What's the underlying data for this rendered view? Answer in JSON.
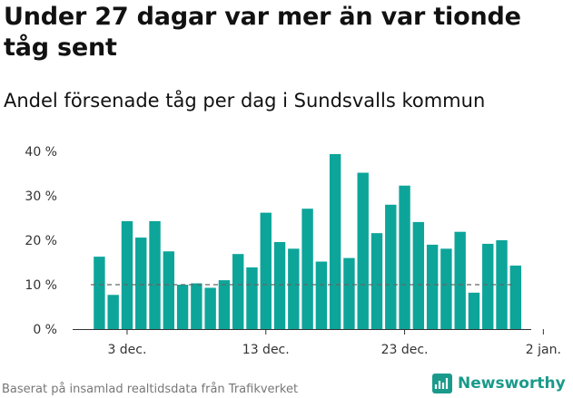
{
  "title": "Under 27 dagar var mer än var tionde tåg sent",
  "subtitle": "Andel försenade tåg per dag i Sundsvalls kommun",
  "source": "Baserat på insamlad realtidsdata från Trafikverket",
  "brand": {
    "name": "Newsworthy",
    "logo_icon": "newsworthy-chart-logo-icon"
  },
  "colors": {
    "bar": "#0da59a",
    "reference_line": "#666666",
    "axis": "#333333",
    "brand": "#1a9a8b"
  },
  "chart_data": {
    "type": "bar",
    "x": [
      "2023-12-01",
      "2023-12-02",
      "2023-12-03",
      "2023-12-04",
      "2023-12-05",
      "2023-12-06",
      "2023-12-07",
      "2023-12-08",
      "2023-12-09",
      "2023-12-10",
      "2023-12-11",
      "2023-12-12",
      "2023-12-13",
      "2023-12-14",
      "2023-12-15",
      "2023-12-16",
      "2023-12-17",
      "2023-12-18",
      "2023-12-19",
      "2023-12-20",
      "2023-12-21",
      "2023-12-22",
      "2023-12-23",
      "2023-12-24",
      "2023-12-25",
      "2023-12-26",
      "2023-12-27",
      "2023-12-28",
      "2023-12-29",
      "2023-12-30",
      "2023-12-31"
    ],
    "values": [
      16.3,
      7.7,
      24.3,
      20.6,
      24.3,
      17.5,
      10.0,
      10.3,
      9.3,
      11.0,
      16.9,
      13.9,
      26.2,
      19.6,
      18.1,
      27.1,
      15.2,
      39.4,
      16.0,
      35.2,
      21.6,
      28.0,
      32.3,
      24.1,
      19.0,
      18.1,
      21.9,
      8.2,
      19.2,
      20.0,
      14.3
    ],
    "reference_line": 10,
    "ylim": [
      0,
      40
    ],
    "yticks": [
      {
        "value": 0,
        "label": "0 %"
      },
      {
        "value": 10,
        "label": "10 %"
      },
      {
        "value": 20,
        "label": "20 %"
      },
      {
        "value": 30,
        "label": "30 %"
      },
      {
        "value": 40,
        "label": "40 %"
      }
    ],
    "xticks": [
      {
        "date": "2023-12-03",
        "label": "3 dec."
      },
      {
        "date": "2023-12-13",
        "label": "13 dec."
      },
      {
        "date": "2023-12-23",
        "label": "23 dec."
      },
      {
        "date": "2024-01-02",
        "label": "2 jan."
      }
    ],
    "xlabel": "",
    "ylabel": "",
    "grid": false,
    "legend": "none"
  }
}
